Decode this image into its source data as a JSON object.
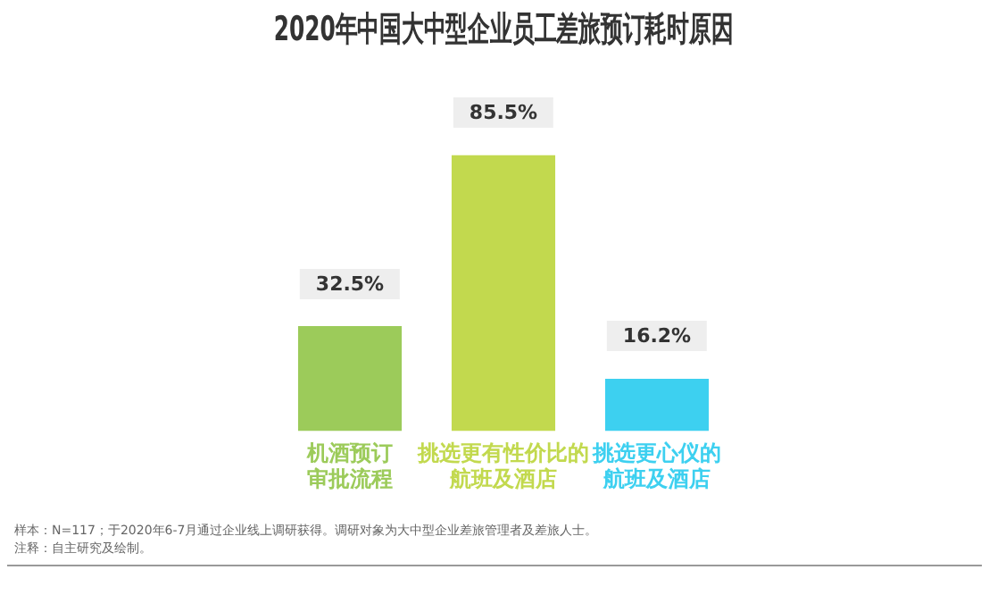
{
  "chart_data": {
    "type": "bar",
    "title": "2020年中国大中型企业员工差旅预订耗时原因",
    "categories": [
      "机酒预订审批流程",
      "挑选更有性价比的航班及酒店",
      "挑选更心仪的航班及酒店"
    ],
    "values": [
      32.5,
      85.5,
      16.2
    ],
    "colors": [
      "#9ccb5a",
      "#c2d94e",
      "#3dd0f0"
    ],
    "value_labels": [
      "32.5%",
      "85.5%",
      "16.2%"
    ],
    "annotations": [
      "样本：N=117；于2020年6-7月通过企业线上调研获得。调研对象为大中型企业差旅管理者及差旅人士。",
      "注释：自主研究及绘制。"
    ],
    "legend": false,
    "grid": false
  }
}
